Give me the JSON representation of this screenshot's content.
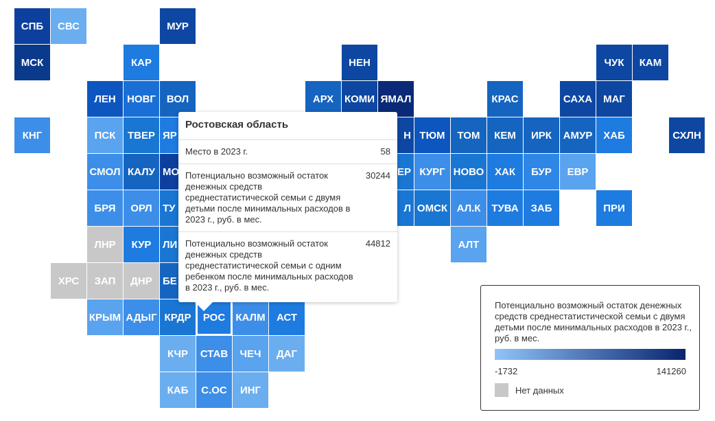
{
  "tiles": [
    {
      "label": "СПБ",
      "color": "#0d3f9e"
    },
    {
      "label": "СВС",
      "color": "#6aaef0"
    },
    {
      "label": "МУР",
      "color": "#0d47a1"
    },
    {
      "label": "МСК",
      "color": "#0a3a8c"
    },
    {
      "label": "КАР",
      "color": "#1e7be0"
    },
    {
      "label": "НЕН",
      "color": "#0d47a1"
    },
    {
      "label": "ЧУК",
      "color": "#0d47a1"
    },
    {
      "label": "КАМ",
      "color": "#0d47a1"
    },
    {
      "label": "ЛЕН",
      "color": "#0d56c0"
    },
    {
      "label": "НОВГ",
      "color": "#1a6fd6"
    },
    {
      "label": "ВОЛ",
      "color": "#1565c0"
    },
    {
      "label": "АРХ",
      "color": "#1565c0"
    },
    {
      "label": "КОМИ",
      "color": "#0d47a1"
    },
    {
      "label": "ЯМАЛ",
      "color": "#0a2a78"
    },
    {
      "label": "КРАС",
      "color": "#1565c0"
    },
    {
      "label": "САХА",
      "color": "#0d47a1"
    },
    {
      "label": "МАГ",
      "color": "#0d47a1"
    },
    {
      "label": "КНГ",
      "color": "#3d8ee8"
    },
    {
      "label": "ПСК",
      "color": "#5aa3ee"
    },
    {
      "label": "ТВЕР",
      "color": "#1976d2"
    },
    {
      "label": "ЯР",
      "color": "#1e7be0"
    },
    {
      "label": "Н",
      "color": "#0d47a1"
    },
    {
      "label": "ТЮМ",
      "color": "#0d56c0"
    },
    {
      "label": "ТОМ",
      "color": "#1565c0"
    },
    {
      "label": "КЕМ",
      "color": "#1565c0"
    },
    {
      "label": "ИРК",
      "color": "#1565c0"
    },
    {
      "label": "АМУР",
      "color": "#1565c0"
    },
    {
      "label": "ХАБ",
      "color": "#1e7be0"
    },
    {
      "label": "СХЛН",
      "color": "#0d47a1"
    },
    {
      "label": "СМОЛ",
      "color": "#3d8ee8"
    },
    {
      "label": "КАЛУ",
      "color": "#1565c0"
    },
    {
      "label": "МО",
      "color": "#0d3f9e"
    },
    {
      "label": "ЕР",
      "color": "#1976d2"
    },
    {
      "label": "КУРГ",
      "color": "#3d8ee8"
    },
    {
      "label": "НОВО",
      "color": "#1976d2"
    },
    {
      "label": "ХАК",
      "color": "#1e7be0"
    },
    {
      "label": "БУР",
      "color": "#2e86e6"
    },
    {
      "label": "ЕВР",
      "color": "#5aa3ee"
    },
    {
      "label": "БРЯ",
      "color": "#3d8ee8"
    },
    {
      "label": "ОРЛ",
      "color": "#3d8ee8"
    },
    {
      "label": "ТУ",
      "color": "#1976d2"
    },
    {
      "label": "Л",
      "color": "#1976d2"
    },
    {
      "label": "ОМСК",
      "color": "#1976d2"
    },
    {
      "label": "АЛ.К",
      "color": "#3d8ee8"
    },
    {
      "label": "ТУВА",
      "color": "#1e7be0"
    },
    {
      "label": "ЗАБ",
      "color": "#1e7be0"
    },
    {
      "label": "ПРИ",
      "color": "#1e7be0"
    },
    {
      "label": "ЛНР",
      "color": "#c8c8c8"
    },
    {
      "label": "КУР",
      "color": "#1e7be0"
    },
    {
      "label": "ЛИ",
      "color": "#1976d2"
    },
    {
      "label": "АЛТ",
      "color": "#5aa3ee"
    },
    {
      "label": "ХРС",
      "color": "#c8c8c8"
    },
    {
      "label": "ЗАП",
      "color": "#c8c8c8"
    },
    {
      "label": "ДНР",
      "color": "#c8c8c8"
    },
    {
      "label": "БЕ",
      "color": "#1565c0"
    },
    {
      "label": "КРЫМ",
      "color": "#5aa3ee"
    },
    {
      "label": "АДЫГ",
      "color": "#3d8ee8"
    },
    {
      "label": "КРДР",
      "color": "#1976d2"
    },
    {
      "label": "РОС",
      "color": "#1e7be0"
    },
    {
      "label": "КАЛМ",
      "color": "#3d8ee8"
    },
    {
      "label": "АСТ",
      "color": "#1e7be0"
    },
    {
      "label": "КЧР",
      "color": "#6aaef0"
    },
    {
      "label": "СТАВ",
      "color": "#3d8ee8"
    },
    {
      "label": "ЧЕЧ",
      "color": "#5aa3ee"
    },
    {
      "label": "ДАГ",
      "color": "#6aaef0"
    },
    {
      "label": "КАБ",
      "color": "#6aaef0"
    },
    {
      "label": "С.ОС",
      "color": "#3d8ee8"
    },
    {
      "label": "ИНГ",
      "color": "#6aaef0"
    }
  ],
  "tooltip": {
    "title": "Ростовская область",
    "rows": [
      {
        "label": "Место в 2023 г.",
        "value": 58
      },
      {
        "label": "Потенциально возможный остаток денежных средств среднестатистической семьи с двумя детьми после минимальных расходов в 2023 г., руб. в мес.",
        "value": 30244
      },
      {
        "label": "Потенциально возможный остаток денежных средств среднестатистической семьи с одним ребенком после минимальных расходов в 2023 г., руб. в мес.",
        "value": 44812
      }
    ]
  },
  "legend": {
    "title": "Потенциально возможный остаток денежных средств среднестатистической семьи с двумя детьми после минимальных расходов в 2023 г., руб. в мес.",
    "min": -1732,
    "max": 141260,
    "min_color": "#90c4f8",
    "max_color": "#08246e",
    "no_data_color": "#c8c8c8",
    "no_data_label": "Нет данных"
  }
}
